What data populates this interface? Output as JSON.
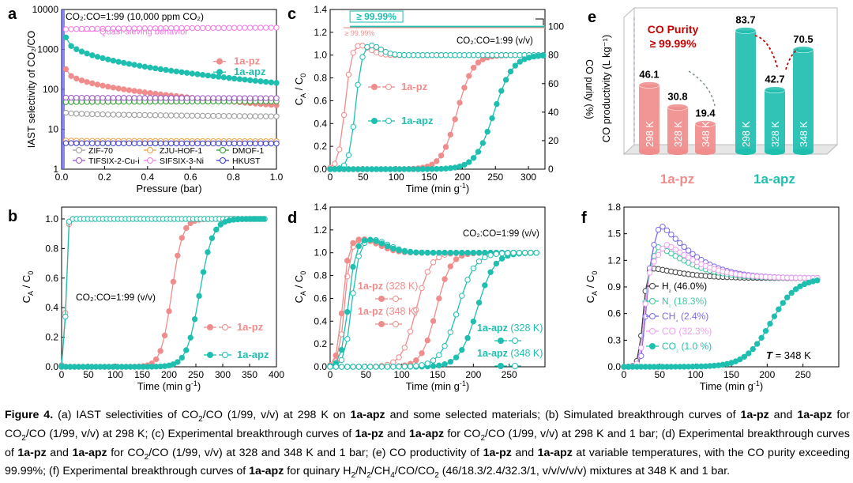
{
  "figure_label": "Figure 4.",
  "caption": [
    {
      "t": "(a) IAST selectivities of CO"
    },
    {
      "t": "2",
      "sub": true
    },
    {
      "t": "/CO (1/99, v/v) at 298 K on "
    },
    {
      "t": "1a-apz",
      "b": true
    },
    {
      "t": " and some selected materials; (b) Simulated breakthrough curves of "
    },
    {
      "t": "1a-pz",
      "b": true
    },
    {
      "t": " and "
    },
    {
      "t": "1a-apz",
      "b": true
    },
    {
      "t": " for CO"
    },
    {
      "t": "2",
      "sub": true
    },
    {
      "t": "/CO (1/99, v/v) at 298 K; (c) Experimental breakthrough curves of "
    },
    {
      "t": "1a-pz",
      "b": true
    },
    {
      "t": " and "
    },
    {
      "t": "1a-apz",
      "b": true
    },
    {
      "t": " for CO"
    },
    {
      "t": "2",
      "sub": true
    },
    {
      "t": "/CO (1/99, v/v) at 298 K and 1 bar; (d) Experimental breakthrough curves of "
    },
    {
      "t": "1a-pz",
      "b": true
    },
    {
      "t": " and "
    },
    {
      "t": "1a-apz",
      "b": true
    },
    {
      "t": " for CO"
    },
    {
      "t": "2",
      "sub": true
    },
    {
      "t": "/CO (1/99, v/v) at 328 and 348 K and 1 bar; (e) CO productivity of "
    },
    {
      "t": "1a-pz",
      "b": true
    },
    {
      "t": " and "
    },
    {
      "t": "1a-apz",
      "b": true
    },
    {
      "t": " at variable temperatures, with the CO purity exceeding 99.99%; (f) Experimental breakthrough curves of "
    },
    {
      "t": "1a-apz",
      "b": true
    },
    {
      "t": " for quinary H"
    },
    {
      "t": "2",
      "sub": true
    },
    {
      "t": "/N"
    },
    {
      "t": "2",
      "sub": true
    },
    {
      "t": "/CH"
    },
    {
      "t": "4",
      "sub": true
    },
    {
      "t": "/CO/CO"
    },
    {
      "t": "2",
      "sub": true
    },
    {
      "t": " (46/18.3/2.4/32.3/1, v/v/v/v/v) mixtures at 348 K and 1 bar."
    }
  ],
  "colors": {
    "pz": "#f08c8c",
    "apz": "#1fbfb0",
    "zif": "#9a9a9a",
    "zju": "#e8a040",
    "dmof": "#2e9a2e",
    "tif": "#9a55c8",
    "sif": "#f07ae0",
    "hk": "#3838d0",
    "h2": "#404040",
    "n2": "#3cc8a0",
    "ch4": "#7a6ae8",
    "co": "#f0a0f0",
    "co2": "#1fbfb0",
    "prod_pz": "#f08c8c",
    "prod_apz": "#1fbfb0"
  },
  "chart_data": [
    {
      "id": "a",
      "type": "scatter",
      "panel_label": "a",
      "annotation": "CO₂:CO=1:99 (10,000 ppm CO₂)",
      "callout": "Quasi-sieving behavior",
      "xlabel": "Pressure (bar)",
      "ylabel": "IAST selectivity of CO₂/CO",
      "yscale": "log",
      "xlim": [
        0,
        1.0
      ],
      "ylim": [
        1,
        10000
      ],
      "xticks": [
        "0.0",
        "0.2",
        "0.4",
        "0.6",
        "0.8",
        "1.0"
      ],
      "yticks": [
        "1",
        "10",
        "100",
        "1000",
        "10000"
      ],
      "series": [
        {
          "name": "1a-pz",
          "key": "pz",
          "start": 320,
          "end": 40
        },
        {
          "name": "1a-apz",
          "key": "apz",
          "start": 2000,
          "end": 145
        },
        {
          "name": "ZIF-70",
          "key": "zif",
          "start": 26,
          "end": 21
        },
        {
          "name": "ZJU-HOF-1",
          "key": "zju",
          "start": 5.2,
          "end": 5.0
        },
        {
          "name": "DMOF-1",
          "key": "dmof",
          "start": 48,
          "end": 50
        },
        {
          "name": "TIFSIX-2-Cu-i",
          "key": "tif",
          "start": 62,
          "end": 60
        },
        {
          "name": "SIFSIX-3-Ni",
          "key": "sif",
          "start": 3200,
          "end": 3500
        },
        {
          "name": "HKUST",
          "key": "hk",
          "start": 4.5,
          "end": 4.4
        }
      ]
    },
    {
      "id": "b",
      "type": "line",
      "panel_label": "b",
      "annotation": "CO₂:CO=1:99 (v/v)",
      "xlabel": "Time (min g⁻¹)",
      "ylabel": "CA / C0",
      "xlim": [
        0,
        400
      ],
      "ylim": [
        0,
        1.08
      ],
      "xticks": [
        "0",
        "50",
        "100",
        "150",
        "200",
        "250",
        "300",
        "350",
        "400"
      ],
      "yticks": [
        "0.0",
        "0.2",
        "0.4",
        "0.6",
        "0.8",
        "1.0"
      ],
      "series": [
        {
          "name": "1a-pz",
          "key": "pz",
          "co_break": [
            2,
            12
          ],
          "co2_break": [
            205,
            18
          ]
        },
        {
          "name": "1a-apz",
          "key": "apz",
          "co_break": [
            2,
            10
          ],
          "co2_break": [
            257,
            22
          ]
        }
      ]
    },
    {
      "id": "c",
      "type": "line",
      "panel_label": "c",
      "annotation": "CO₂:CO=1:99 (v/v)",
      "purity_label": "≥ 99.99%",
      "purity_small": "≥ 99.99%",
      "xlabel": "Time (min g⁻¹)",
      "ylabel": "CA / C0",
      "y2label": "CO purity (%)",
      "xlim": [
        0,
        325
      ],
      "ylim": [
        0,
        1.4
      ],
      "y2lim": [
        0,
        112
      ],
      "xticks": [
        "0",
        "50",
        "100",
        "150",
        "200",
        "250",
        "300"
      ],
      "yticks": [
        "0.0",
        "0.2",
        "0.4",
        "0.6",
        "0.8",
        "1.0",
        "1.2",
        "1.4"
      ],
      "y2ticks": [
        "0",
        "20",
        "40",
        "60",
        "80",
        "100"
      ],
      "series": [
        {
          "name": "1a-pz",
          "key": "pz",
          "co_break": [
            22,
            5
          ],
          "co2_break": [
            192,
            12
          ]
        },
        {
          "name": "1a-apz",
          "key": "apz",
          "co_break": [
            38,
            5
          ],
          "co2_break": [
            248,
            14
          ]
        }
      ]
    },
    {
      "id": "d",
      "type": "line",
      "panel_label": "d",
      "annotation": "CO₂:CO=1:99 (v/v)",
      "xlabel": "Time (min g⁻¹)",
      "ylabel": "CA / C0",
      "xlim": [
        0,
        300
      ],
      "ylim": [
        0,
        1.4
      ],
      "xticks": [
        "0",
        "50",
        "100",
        "150",
        "200",
        "250"
      ],
      "yticks": [
        "0.0",
        "0.2",
        "0.4",
        "0.6",
        "0.8",
        "1.0",
        "1.2",
        "1.4"
      ],
      "series": [
        {
          "name": "1a-pz (328 K)",
          "key": "pz",
          "co_break": [
            20,
            4
          ],
          "co2_break": [
            148,
            10
          ]
        },
        {
          "name": "1a-pz (348 K)",
          "key": "pz",
          "co_break": [
            17,
            4
          ],
          "co2_break": [
            120,
            10
          ]
        },
        {
          "name": "1a-apz (328 K)",
          "key": "apz",
          "co_break": [
            30,
            5
          ],
          "co2_break": [
            205,
            12
          ]
        },
        {
          "name": "1a-apz (348 K)",
          "key": "apz",
          "co_break": [
            25,
            5
          ],
          "co2_break": [
            178,
            12
          ]
        }
      ]
    },
    {
      "id": "e",
      "type": "bar",
      "panel_label": "e",
      "purity_title": "CO Purity",
      "purity_value": "≥ 99.99%",
      "ylabel": "CO productivity (L kg⁻¹)",
      "groups": [
        {
          "name": "1a-pz",
          "key": "prod_pz",
          "bars": [
            {
              "label": "298 K",
              "value": 46.1
            },
            {
              "label": "328 K",
              "value": 30.8
            },
            {
              "label": "348 K",
              "value": 19.4
            }
          ]
        },
        {
          "name": "1a-apz",
          "key": "prod_apz",
          "bars": [
            {
              "label": "298 K",
              "value": 83.7
            },
            {
              "label": "328 K",
              "value": 42.7
            },
            {
              "label": "348 K",
              "value": 70.5
            }
          ]
        }
      ]
    },
    {
      "id": "f",
      "type": "line",
      "panel_label": "f",
      "annotation_italic": "T",
      "annotation": "= 348 K",
      "xlabel": "Time (min g⁻¹)",
      "ylabel": "CA / C0",
      "xlim": [
        0,
        300
      ],
      "ylim": [
        0,
        1.8
      ],
      "xticks": [
        "0",
        "50",
        "100",
        "150",
        "200",
        "250"
      ],
      "yticks": [
        "0.0",
        "0.3",
        "0.6",
        "0.9",
        "1.2",
        "1.5",
        "1.8"
      ],
      "series": [
        {
          "name": "H₂ (46.0%)",
          "key": "h2",
          "start": 18,
          "peak": 1.12,
          "peak_t": 35
        },
        {
          "name": "N₂ (18.3%)",
          "key": "n2",
          "start": 20,
          "peak": 1.35,
          "peak_t": 48
        },
        {
          "name": "CH₄ (2.4%)",
          "key": "ch4",
          "start": 22,
          "peak": 1.6,
          "peak_t": 50
        },
        {
          "name": "CO (32.3%)",
          "key": "co",
          "start": 20,
          "peak": 1.38,
          "peak_t": 58
        },
        {
          "name": "CO₂ (1.0 %)",
          "key": "co2",
          "start": 0,
          "break": 205,
          "width": 18
        }
      ]
    }
  ]
}
